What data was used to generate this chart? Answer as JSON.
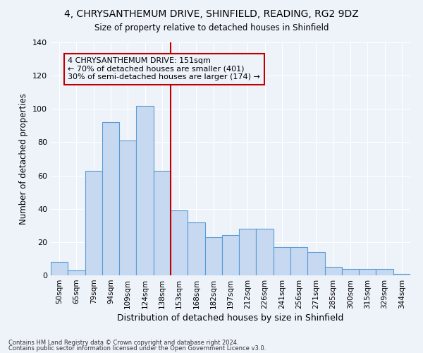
{
  "title1": "4, CHRYSANTHEMUM DRIVE, SHINFIELD, READING, RG2 9DZ",
  "title2": "Size of property relative to detached houses in Shinfield",
  "xlabel": "Distribution of detached houses by size in Shinfield",
  "ylabel": "Number of detached properties",
  "categories": [
    "50sqm",
    "65sqm",
    "79sqm",
    "94sqm",
    "109sqm",
    "124sqm",
    "138sqm",
    "153sqm",
    "168sqm",
    "182sqm",
    "197sqm",
    "212sqm",
    "226sqm",
    "241sqm",
    "256sqm",
    "271sqm",
    "285sqm",
    "300sqm",
    "315sqm",
    "329sqm",
    "344sqm"
  ],
  "values": [
    8,
    3,
    63,
    92,
    81,
    102,
    63,
    39,
    32,
    23,
    24,
    28,
    28,
    17,
    17,
    14,
    5,
    4,
    4,
    4,
    1
  ],
  "bar_color": "#c6d9f1",
  "bar_edge_color": "#5b9bd5",
  "vline_color": "#c00000",
  "annotation_text": "4 CHRYSANTHEMUM DRIVE: 151sqm\n← 70% of detached houses are smaller (401)\n30% of semi-detached houses are larger (174) →",
  "bg_color": "#eef3fa",
  "grid_color": "#ffffff",
  "ylim": [
    0,
    140
  ],
  "yticks": [
    0,
    20,
    40,
    60,
    80,
    100,
    120,
    140
  ],
  "footer1": "Contains HM Land Registry data © Crown copyright and database right 2024.",
  "footer2": "Contains public sector information licensed under the Open Government Licence v3.0."
}
